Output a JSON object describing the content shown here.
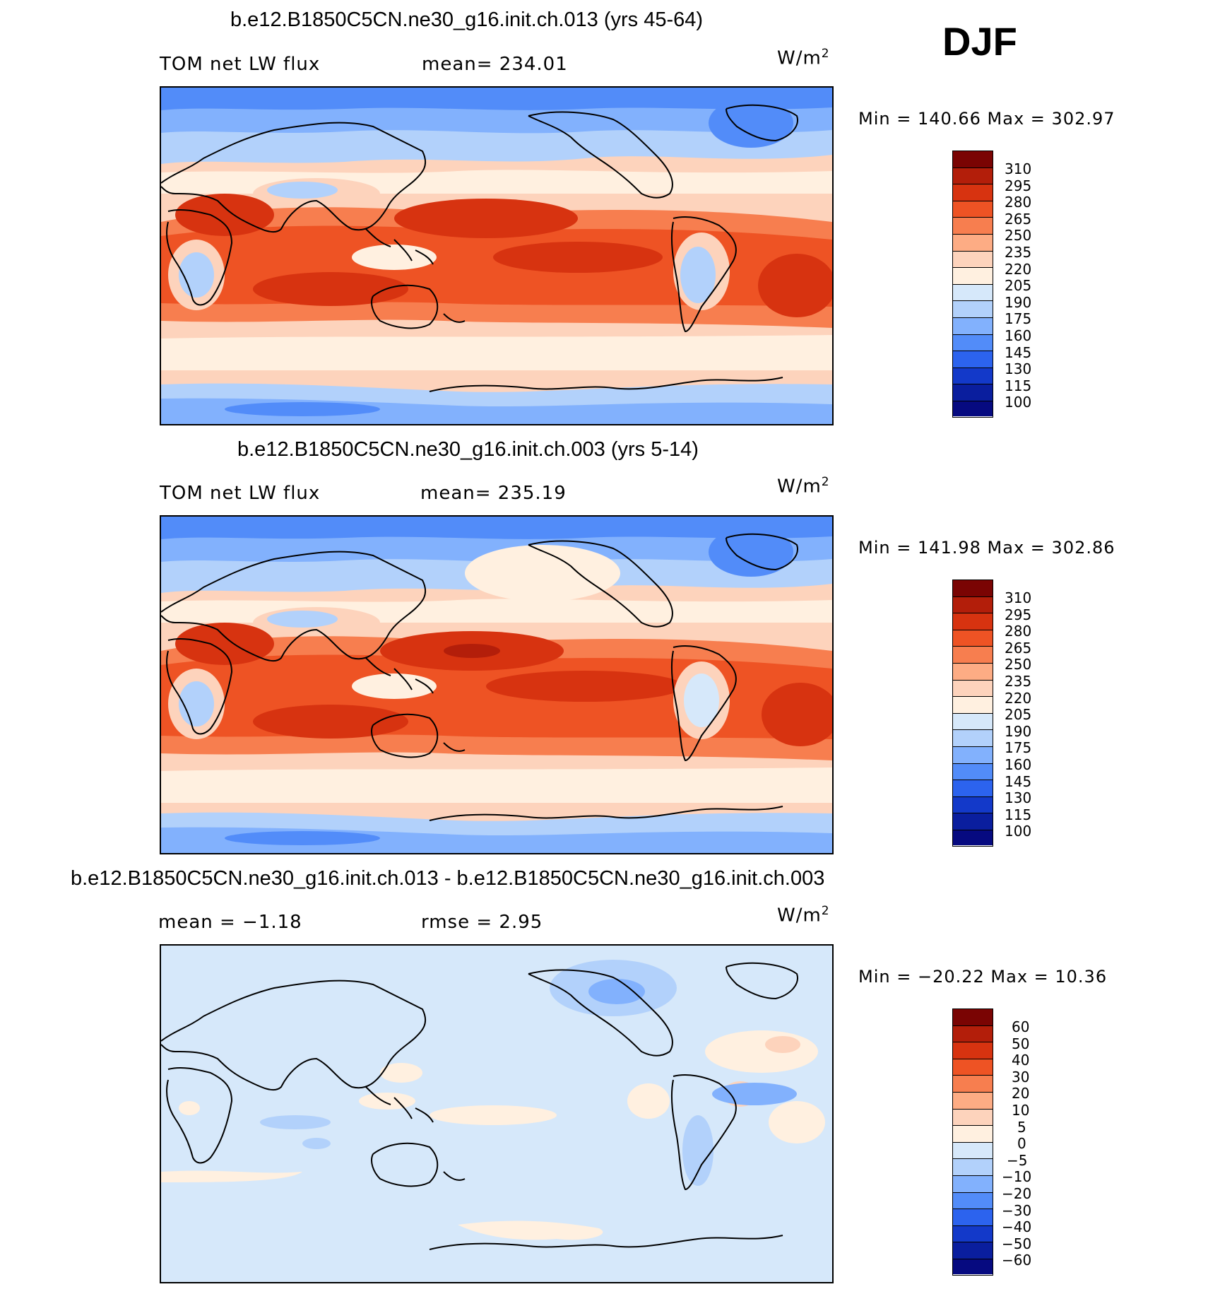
{
  "season": "DJF",
  "panels": [
    {
      "title": "b.e12.B1850C5CN.ne30_g16.init.ch.013 (yrs 45-64)",
      "left_text": "TOM net LW flux",
      "center_text": "mean= 234.01",
      "units": "W/m",
      "units_exp": "2",
      "minmax": "Min = 140.66 Max = 302.97",
      "colorbar_labels": [
        "310",
        "295",
        "280",
        "265",
        "250",
        "235",
        "220",
        "205",
        "190",
        "175",
        "160",
        "145",
        "130",
        "115",
        "100"
      ]
    },
    {
      "title": "b.e12.B1850C5CN.ne30_g16.init.ch.003 (yrs 5-14)",
      "left_text": "TOM net LW flux",
      "center_text": "mean= 235.19",
      "units": "W/m",
      "units_exp": "2",
      "minmax": "Min = 141.98 Max = 302.86",
      "colorbar_labels": [
        "310",
        "295",
        "280",
        "265",
        "250",
        "235",
        "220",
        "205",
        "190",
        "175",
        "160",
        "145",
        "130",
        "115",
        "100"
      ]
    },
    {
      "title": "b.e12.B1850C5CN.ne30_g16.init.ch.013 - b.e12.B1850C5CN.ne30_g16.init.ch.003",
      "left_text": "mean =  −1.18",
      "center_text": "rmse =   2.95",
      "units": "W/m",
      "units_exp": "2",
      "minmax": "Min = −20.22 Max =  10.36",
      "colorbar_labels": [
        "60",
        "50",
        "40",
        "30",
        "20",
        "10",
        "5",
        "0",
        "−5",
        "−10",
        "−20",
        "−30",
        "−40",
        "−50",
        "−60"
      ]
    }
  ],
  "colorbar_colors": [
    "#7a0403",
    "#b31e0a",
    "#d73310",
    "#ee5324",
    "#f77e4f",
    "#fdac84",
    "#fdd3bc",
    "#fff0e0",
    "#d6e8fa",
    "#b2d1fb",
    "#82b1fd",
    "#528cf9",
    "#2c63ee",
    "#1339c9",
    "#0a1e9e",
    "#060a80"
  ]
}
